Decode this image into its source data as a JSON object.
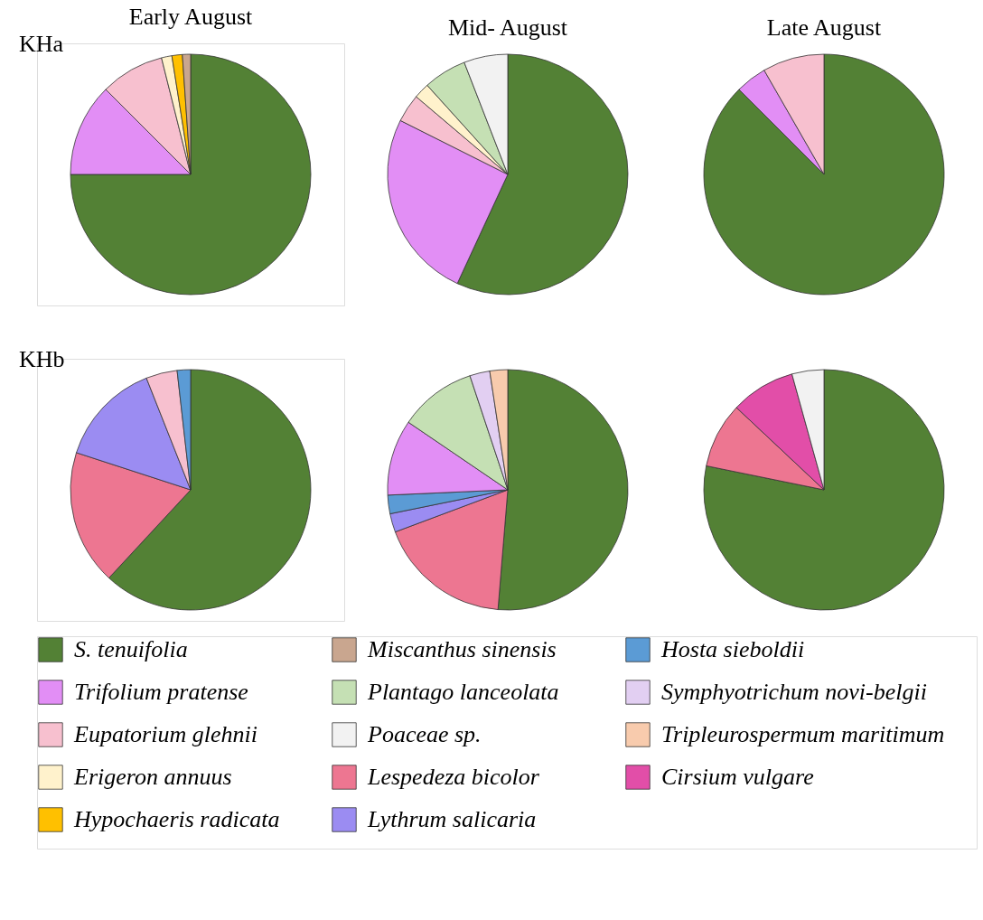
{
  "chart_data": [
    {
      "type": "pie",
      "title": "Early August",
      "annotations": [
        "KHa"
      ],
      "legend": "bottom",
      "categories": [
        "S. tenuifolia",
        "Trifolium pratense",
        "Eupatorium glehnii",
        "Erigeron annuus",
        "Hypochaeris radicata",
        "Miscanthus sinensis",
        "Plantago lanceolata",
        "Poaceae sp.",
        "Lespedeza bicolor",
        "Lythrum salicaria",
        "Hosta sieboldii",
        "Symphyotrichum novi-belgii",
        "Tripleurospermum maritimum",
        "Cirsium vulgare"
      ],
      "values": [
        75,
        12.5,
        8.6,
        1.4,
        1.4,
        1.1,
        null,
        null,
        null,
        null,
        null,
        null,
        null,
        null
      ],
      "colors": [
        "#538135",
        "#e28ef5",
        "#f7c0cf",
        "#fff2cc",
        "#ffc000",
        "#c9a68f",
        "#c5e0b4",
        "#f2f2f2",
        "#ed7691",
        "#9b8cf2",
        "#5b9bd5",
        "#e2cff2",
        "#f8cbad",
        "#e24ea8"
      ]
    },
    {
      "type": "pie",
      "title": "Mid- August",
      "categories": [
        null,
        null,
        null,
        null,
        null,
        null
      ],
      "values": [
        56.9,
        25.5,
        3.8,
        2.1,
        5.8,
        5.9
      ],
      "colors": [
        "#538135",
        "#e28ef5",
        "#f7c0cf",
        "#fff2cc",
        "#c5e0b4",
        "#f2f2f2"
      ]
    },
    {
      "type": "pie",
      "title": "Late August",
      "categories": [
        null,
        null,
        null
      ],
      "values": [
        87.5,
        4.2,
        8.3
      ],
      "colors": [
        "#538135",
        "#e28ef5",
        "#f7c0cf"
      ]
    },
    {
      "type": "pie",
      "annotations": [
        "KHb"
      ],
      "categories": [
        null,
        null,
        null,
        null,
        null
      ],
      "values": [
        61.9,
        18.1,
        14,
        4.2,
        1.8
      ],
      "colors": [
        "#538135",
        "#ed7691",
        "#9b8cf2",
        "#f7c0cf",
        "#5b9bd5"
      ]
    },
    {
      "type": "pie",
      "categories": [
        null,
        null,
        null,
        null,
        null,
        null,
        null,
        null
      ],
      "values": [
        51.3,
        18,
        2.5,
        2.5,
        10.2,
        10.4,
        2.7,
        2.4
      ],
      "colors": [
        "#538135",
        "#ed7691",
        "#9b8cf2",
        "#5b9bd5",
        "#e28ef5",
        "#c5e0b4",
        "#e2cff2",
        "#f8cbad"
      ]
    },
    {
      "type": "pie",
      "categories": [
        null,
        null,
        null,
        null
      ],
      "values": [
        78.2,
        8.8,
        8.7,
        4.3
      ],
      "colors": [
        "#538135",
        "#ed7691",
        "#e24ea8",
        "#f2f2f2"
      ]
    }
  ]
}
